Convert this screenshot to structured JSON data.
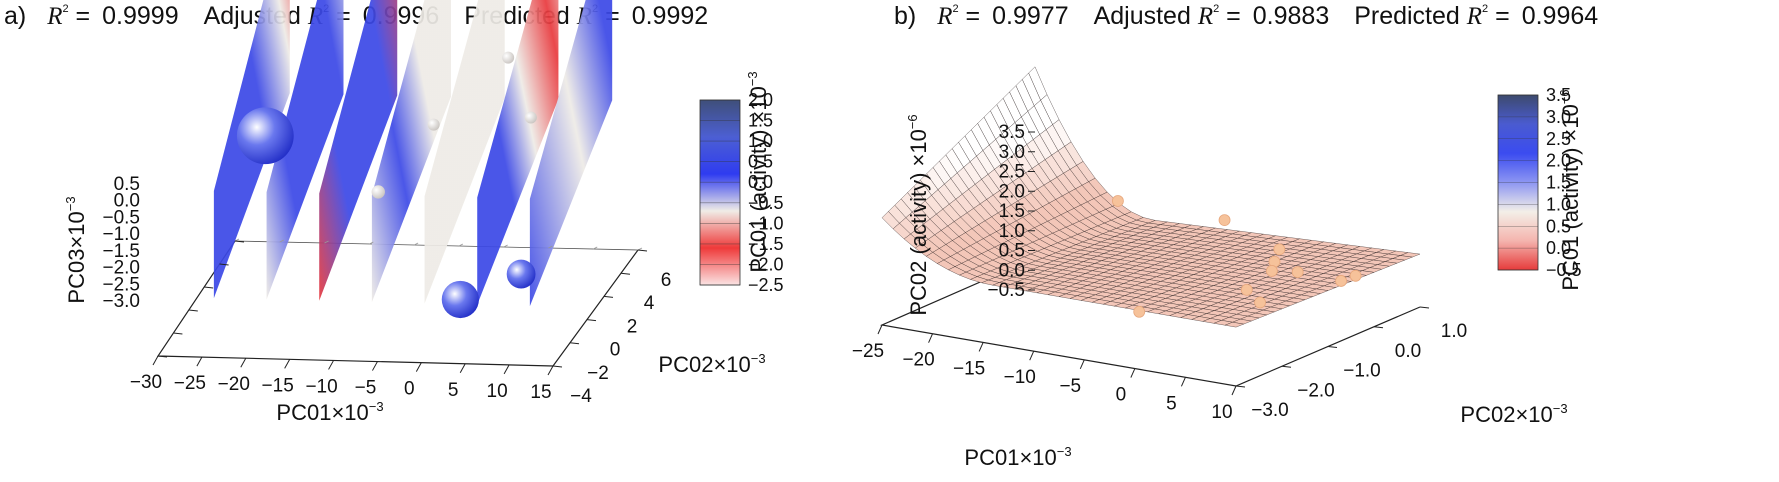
{
  "chart_data": [
    {
      "type": "scatter",
      "panel_label": "a)",
      "stats": [
        {
          "label": "R",
          "sup": "2",
          "suffix": " =",
          "value": "0.9999"
        },
        {
          "label_prefix": "Adjusted ",
          "label": "R",
          "sup": "2",
          "suffix": " =",
          "value": "0.9996"
        },
        {
          "label_prefix": "Predicted ",
          "label": "R",
          "sup": "2",
          "suffix": " =",
          "value": "0.9992"
        }
      ],
      "xlabel": "PC01×10",
      "xlabel_sup": "−3",
      "ylabel": "PC02×10",
      "ylabel_sup": "−3",
      "zlabel": "PC03×10",
      "zlabel_sup": "−3",
      "x_ticks": [
        "−30",
        "−25",
        "−20",
        "−15",
        "−10",
        "−5",
        "0",
        "5",
        "10",
        "15"
      ],
      "y_ticks": [
        "−4",
        "−2",
        "0",
        "2",
        "4",
        "6"
      ],
      "z_ticks": [
        "0.5",
        "0.0",
        "−0.5",
        "−1.0",
        "−1.5",
        "−2.0",
        "−2.5",
        "−3.0"
      ],
      "xlim": [
        -30,
        15
      ],
      "ylim": [
        -4,
        6
      ],
      "zlim": [
        -3.0,
        0.5
      ],
      "slices_at_pc01": [
        -25,
        -19,
        -13,
        -7,
        -1,
        5,
        11
      ],
      "points": [
        {
          "x": -24.0,
          "y": 3.0,
          "z": 0.35,
          "value": 1.6
        },
        {
          "x": -9.5,
          "y": 1.0,
          "z": -0.55,
          "value": 0.05
        },
        {
          "x": -6.0,
          "y": 4.0,
          "z": 0.45,
          "value": 0.0
        },
        {
          "x": 3.5,
          "y": 5.5,
          "z": 0.2,
          "value": 0.0
        },
        {
          "x": 0.5,
          "y": 6.0,
          "z": 1.8,
          "value": 0.0
        },
        {
          "x": 8.5,
          "y": -1.0,
          "z": -2.2,
          "value": 0.6
        },
        {
          "x": 3.5,
          "y": -3.0,
          "z": -2.3,
          "value": 0.9
        }
      ],
      "colorbar": {
        "label": "PC01 (activity) ×10",
        "label_sup": "−3",
        "ticks": [
          "2.0",
          "1.5",
          "1.0",
          "0.5",
          "0.0",
          "−0.5",
          "−1.0",
          "−1.5",
          "−2.0",
          "−2.5"
        ],
        "range": [
          -2.5,
          2.0
        ],
        "colors": [
          "#3f4f7a",
          "#4c5fd3",
          "#2f3cf0",
          "#f0ece6",
          "#ef3a3a",
          "#fbe3e3"
        ]
      },
      "colors": {
        "positive": "#3b48e6",
        "neutral": "#eeebe6",
        "negative": "#e8383c"
      }
    },
    {
      "type": "surface",
      "panel_label": "b)",
      "stats": [
        {
          "label": "R",
          "sup": "2",
          "suffix": " =",
          "value": "0.9977"
        },
        {
          "label_prefix": "Adjusted ",
          "label": "R",
          "sup": "2",
          "suffix": " =",
          "value": "0.9883"
        },
        {
          "label_prefix": "Predicted ",
          "label": "R",
          "sup": "2",
          "suffix": " =",
          "value": "0.9964"
        }
      ],
      "xlabel": "PC01×10",
      "xlabel_sup": "−3",
      "ylabel": "PC02×10",
      "ylabel_sup": "−3",
      "zlabel": "PC02 (activity) ×10",
      "zlabel_sup": "−6",
      "x_ticks": [
        "−25",
        "−20",
        "−15",
        "−10",
        "−5",
        "0",
        "5",
        "10"
      ],
      "y_ticks": [
        "−3.0",
        "−2.0",
        "−1.0",
        "0.0",
        "1.0"
      ],
      "z_ticks": [
        "3.5",
        "3.0",
        "2.5",
        "2.0",
        "1.5",
        "1.0",
        "0.5",
        "0.0",
        "−0.5"
      ],
      "xlim": [
        -25,
        10
      ],
      "ylim": [
        -3.0,
        1.0
      ],
      "zlim": [
        -0.5,
        3.5
      ],
      "points": [
        {
          "x": -16.0,
          "y": 0.6,
          "z": 0.55
        },
        {
          "x": -7.0,
          "y": 0.8,
          "z": 0.3
        },
        {
          "x": 0.0,
          "y": 0.3,
          "z": 0.05
        },
        {
          "x": 2.0,
          "y": -0.3,
          "z": 0.1
        },
        {
          "x": 3.0,
          "y": -0.6,
          "z": 0.05
        },
        {
          "x": 5.0,
          "y": -0.5,
          "z": 0.05
        },
        {
          "x": 4.0,
          "y": -1.4,
          "z": 0.0
        },
        {
          "x": 7.0,
          "y": -1.8,
          "z": 0.0
        },
        {
          "x": 9.5,
          "y": -0.6,
          "z": 0.05
        },
        {
          "x": 10.0,
          "y": -0.4,
          "z": 0.1
        },
        {
          "x": 0.0,
          "y": -2.9,
          "z": 0.0
        }
      ],
      "colorbar": {
        "label": "PC01 (activity) ×10",
        "label_sup": "−6",
        "ticks": [
          "3.5",
          "3.0",
          "2.5",
          "2.0",
          "1.5",
          "1.0",
          "0.5",
          "0.0",
          "−0.5"
        ],
        "range": [
          -0.5,
          3.5
        ],
        "colors": [
          "#3d4a6e",
          "#4a5bd0",
          "#3b4cf0",
          "#8d96f2",
          "#f3efe8",
          "#f4b4ae",
          "#e63b3b"
        ]
      },
      "colors": {
        "surface": "#f3c6b8",
        "mesh": "#2a2020",
        "points": "#f6c29a"
      }
    }
  ]
}
